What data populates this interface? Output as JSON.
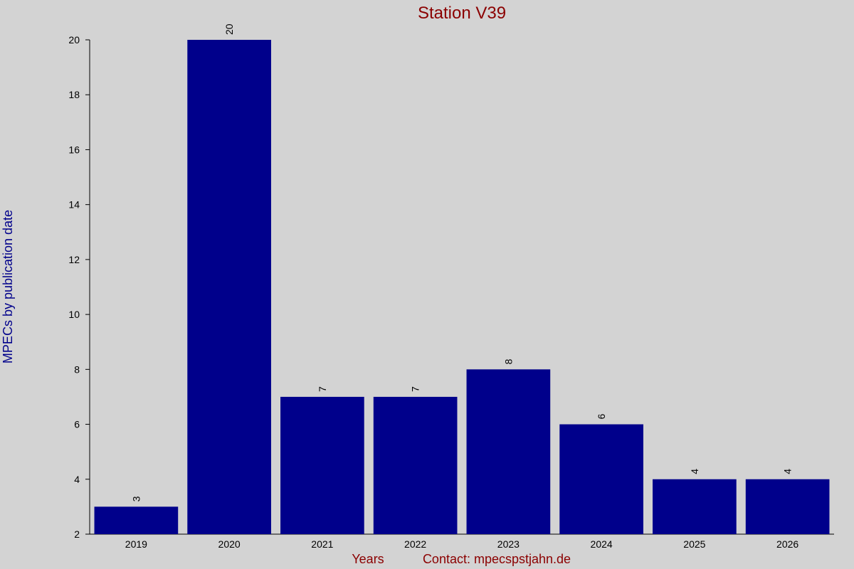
{
  "chart_data": {
    "type": "bar",
    "title": "Station V39",
    "y_label": "MPECs by publication date",
    "x_label": "Years",
    "note": "Contact: mpecspstjahn.de",
    "categories": [
      "2019",
      "2020",
      "2021",
      "2022",
      "2023",
      "2024",
      "2025",
      "2026"
    ],
    "values": [
      3,
      20,
      7,
      7,
      8,
      6,
      4,
      4
    ],
    "color": "#00008b",
    "ylim": [
      2,
      20
    ],
    "yticks": [
      2,
      4,
      6,
      8,
      10,
      12,
      14,
      16,
      18,
      20
    ]
  }
}
